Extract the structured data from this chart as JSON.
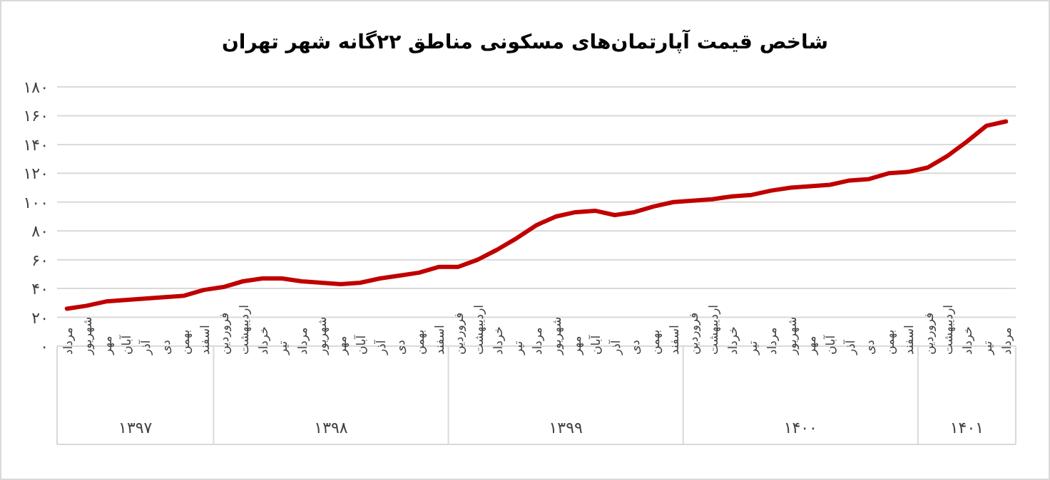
{
  "chart_data": {
    "type": "line",
    "title": "شاخص قیمت آپارتمان‌های مسکونی مناطق ۲۲گانه شهر تهران",
    "categories": [
      "مرداد",
      "شهریور",
      "مهر",
      "آبان",
      "آذر",
      "دی",
      "بهمن",
      "اسفند",
      "فروردین",
      "اردیبهشت",
      "خرداد",
      "تیر",
      "مرداد",
      "شهریور",
      "مهر",
      "آبان",
      "آذر",
      "دی",
      "بهمن",
      "اسفند",
      "فروردین",
      "اردیبهشت",
      "خرداد",
      "تیر",
      "مرداد",
      "شهریور",
      "مهر",
      "آبان",
      "آذر",
      "دی",
      "بهمن",
      "اسفند",
      "فروردین",
      "اردیبهشت",
      "خرداد",
      "تیر",
      "مرداد",
      "شهریور",
      "مهر",
      "آبان",
      "آذر",
      "دی",
      "بهمن",
      "اسفند",
      "فروردین",
      "اردیبهشت",
      "خرداد",
      "تیر",
      "مرداد"
    ],
    "series": [
      {
        "color": "#c00000",
        "values": [
          26,
          28,
          31,
          32,
          33,
          34,
          35,
          39,
          41,
          45,
          47,
          47,
          45,
          44,
          43,
          44,
          47,
          49,
          51,
          55,
          55,
          60,
          67,
          75,
          84,
          90,
          93,
          94,
          91,
          93,
          97,
          100,
          101,
          102,
          104,
          105,
          108,
          110,
          111,
          112,
          115,
          116,
          120,
          121,
          124,
          132,
          142,
          153,
          156
        ]
      }
    ],
    "annotations": [
      "۱۳۹۷",
      "۱۳۹۸",
      "۱۳۹۹",
      "۱۴۰۰",
      "۱۴۰۱"
    ],
    "ylim": [
      0,
      180
    ],
    "yticks": [
      {
        "value": 0,
        "label": "۰"
      },
      {
        "value": 20,
        "label": "۲۰"
      },
      {
        "value": 40,
        "label": "۴۰"
      },
      {
        "value": 60,
        "label": "۶۰"
      },
      {
        "value": 80,
        "label": "۸۰"
      },
      {
        "value": 100,
        "label": "۱۰۰"
      },
      {
        "value": 120,
        "label": "۱۲۰"
      },
      {
        "value": 140,
        "label": "۱۴۰"
      },
      {
        "value": 160,
        "label": "۱۶۰"
      },
      {
        "value": 180,
        "label": "۱۸۰"
      }
    ],
    "grid": "y",
    "marker": "none",
    "line_style": "solid"
  }
}
